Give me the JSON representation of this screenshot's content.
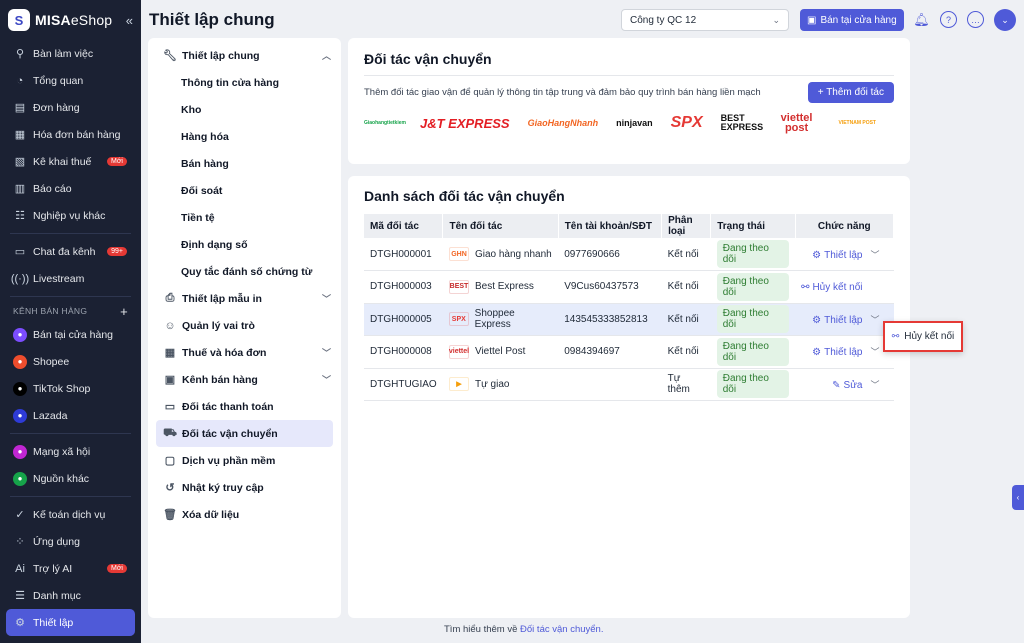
{
  "brand": {
    "name": "MISA",
    "suffix": "eShop"
  },
  "sidebar": {
    "items_top": [
      {
        "label": "Bàn làm việc",
        "icon": "desk-icon"
      },
      {
        "label": "Tổng quan",
        "icon": "dashboard-icon"
      },
      {
        "label": "Đơn hàng",
        "icon": "order-icon"
      },
      {
        "label": "Hóa đơn bán hàng",
        "icon": "invoice-icon"
      },
      {
        "label": "Kê khai thuế",
        "icon": "tax-icon",
        "badge": "Mới"
      },
      {
        "label": "Báo cáo",
        "icon": "report-icon"
      },
      {
        "label": "Nghiệp vụ khác",
        "icon": "business-icon"
      }
    ],
    "items_mid": [
      {
        "label": "Chat đa kênh",
        "icon": "chat-icon",
        "badge": "99+"
      },
      {
        "label": "Livestream",
        "icon": "livestream-icon"
      }
    ],
    "section_label": "KÊNH BÁN HÀNG",
    "channels": [
      {
        "label": "Bán tại cửa hàng",
        "icon": "store-icon",
        "color": "#7c4dff"
      },
      {
        "label": "Shopee",
        "icon": "shopee-icon",
        "color": "#ee4d2d"
      },
      {
        "label": "TikTok Shop",
        "icon": "tiktok-icon",
        "color": "#000000"
      },
      {
        "label": "Lazada",
        "icon": "lazada-icon",
        "color": "#2e3bd6"
      }
    ],
    "social": [
      {
        "label": "Mạng xã hội",
        "icon": "social-icon",
        "color": "#c026d3"
      },
      {
        "label": "Nguồn khác",
        "icon": "other-source-icon",
        "color": "#16a34a"
      }
    ],
    "bottom": [
      {
        "label": "Kế toán dịch vụ",
        "icon": "accounting-icon"
      },
      {
        "label": "Ứng dụng",
        "icon": "apps-icon"
      },
      {
        "label": "Trợ lý AI",
        "icon": "ai-icon",
        "badge": "Mới"
      },
      {
        "label": "Danh mục",
        "icon": "catalog-icon"
      },
      {
        "label": "Thiết lập",
        "icon": "settings-icon"
      }
    ]
  },
  "header": {
    "title": "Thiết lập chung",
    "company": "Công ty QC 12",
    "store_button": "Bán tại cửa hàng"
  },
  "settings_menu": [
    {
      "label": "Thiết lập chung",
      "icon": "wrench-icon",
      "expanded": true,
      "children": [
        "Thông tin cửa hàng",
        "Kho",
        "Hàng hóa",
        "Bán hàng",
        "Đối soát",
        "Tiền tệ",
        "Định dạng số",
        "Quy tắc đánh số chứng từ"
      ]
    },
    {
      "label": "Thiết lập mẫu in",
      "icon": "printer-icon",
      "chevron": true
    },
    {
      "label": "Quản lý vai trò",
      "icon": "role-icon"
    },
    {
      "label": "Thuế và hóa đơn",
      "icon": "tax-invoice-icon",
      "chevron": true
    },
    {
      "label": "Kênh bán hàng",
      "icon": "channel-icon",
      "chevron": true
    },
    {
      "label": "Đối tác thanh toán",
      "icon": "payment-icon"
    },
    {
      "label": "Đối tác vận chuyển",
      "icon": "truck-icon",
      "active": true
    },
    {
      "label": "Dịch vụ phần mềm",
      "icon": "software-icon"
    },
    {
      "label": "Nhật ký truy cập",
      "icon": "history-icon"
    },
    {
      "label": "Xóa dữ liệu",
      "icon": "trash-icon"
    }
  ],
  "partners_card": {
    "title": "Đối tác vận chuyển",
    "description": "Thêm đối tác giao vận để quản lý thông tin tập trung và đảm bảo quy trình bán hàng liền mạch",
    "add_button": "+ Thêm đối tác",
    "logos": [
      "Giaohangtietkiem",
      "J&T EXPRESS",
      "GiaoHangNhanh",
      "ninjavan",
      "SPX",
      "BEST EXPRESS",
      "viettel post",
      "VIETNAM POST"
    ]
  },
  "list_card": {
    "title": "Danh sách đối tác vận chuyển",
    "columns": [
      "Mã đối tác",
      "Tên đối tác",
      "Tên tài khoản/SĐT",
      "Phân loại",
      "Trạng thái",
      "Chức năng"
    ],
    "rows": [
      {
        "code": "DTGH000001",
        "name": "Giao hàng nhanh",
        "logo": "GHN",
        "logo_color": "#f26522",
        "account": "0977690666",
        "type": "Kết nối",
        "status": "Đang theo dõi",
        "action": "Thiết lập",
        "action_icon": "gear-icon",
        "chevron": true
      },
      {
        "code": "DTGH000003",
        "name": "Best Express",
        "logo": "BEST",
        "logo_color": "#c62828",
        "account": "V9Cus60437573",
        "type": "Kết nối",
        "status": "Đang theo dõi",
        "action": "Hủy kết nối",
        "action_icon": "unlink-icon",
        "chevron": false
      },
      {
        "code": "DTGH000005",
        "name": "Shoppee Express",
        "logo": "SPX",
        "logo_color": "#e53935",
        "account": "143545333852813",
        "type": "Kết nối",
        "status": "Đang theo dõi",
        "action": "Thiết lập",
        "action_icon": "gear-icon",
        "chevron": true,
        "highlight": true
      },
      {
        "code": "DTGH000008",
        "name": "Viettel Post",
        "logo": "viettel",
        "logo_color": "#d32f2f",
        "account": "0984394697",
        "type": "Kết nối",
        "status": "Đang theo dõi",
        "action": "Thiết lập",
        "action_icon": "gear-icon",
        "chevron": true
      },
      {
        "code": "DTGHTUGIAO",
        "name": "Tự giao",
        "logo": "▶",
        "logo_color": "#f59e0b",
        "account": "",
        "type": "Tự thêm",
        "status": "Đang theo dõi",
        "action": "Sửa",
        "action_icon": "pencil-icon",
        "chevron": true
      }
    ]
  },
  "popup": {
    "label": "Hủy kết nối"
  },
  "footer": {
    "prefix": "Tìm hiểu thêm về",
    "link": "Đối tác vận chuyển."
  }
}
